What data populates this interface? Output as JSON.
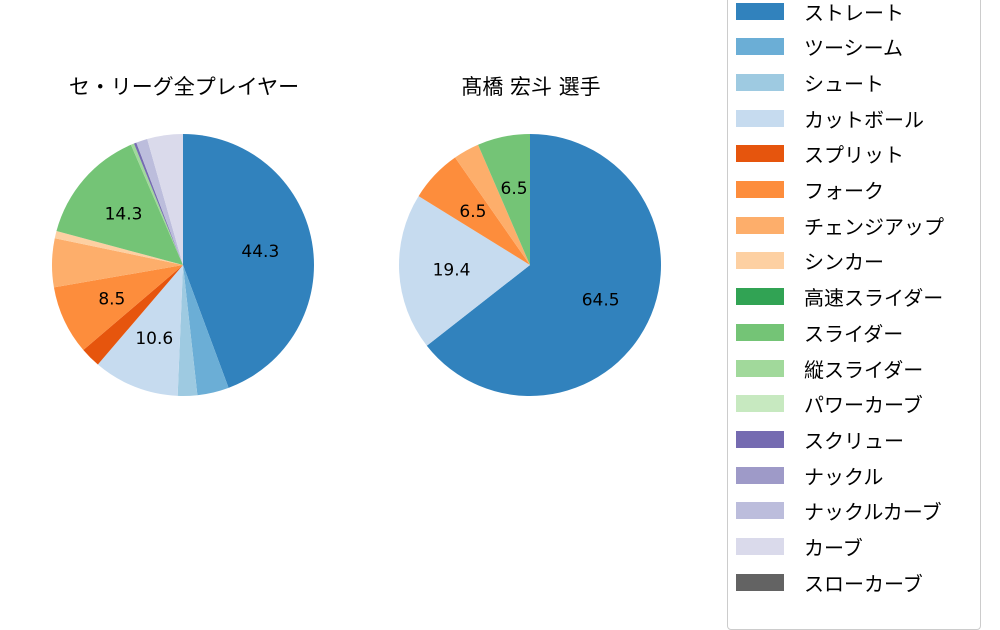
{
  "chart_data": [
    {
      "type": "pie",
      "title": "セ・リーグ全プレイヤー",
      "categories": [
        "ストレート",
        "ツーシーム",
        "シュート",
        "カットボール",
        "スプリット",
        "フォーク",
        "チェンジアップ",
        "シンカー",
        "高速スライダー",
        "スライダー",
        "縦スライダー",
        "パワーカーブ",
        "スクリュー",
        "ナックル",
        "ナックルカーブ",
        "カーブ",
        "スローカーブ"
      ],
      "values": [
        44.3,
        3.9,
        2.4,
        10.6,
        2.5,
        8.5,
        6.0,
        0.9,
        0.0,
        14.3,
        0.4,
        0.0,
        0.3,
        0.0,
        1.4,
        4.4,
        0.0
      ],
      "labels_shown": [
        "44.3",
        "10.6",
        "8.5",
        "14.3"
      ],
      "start_angle": "12 o'clock, clockwise"
    },
    {
      "type": "pie",
      "title": "髙橋 宏斗  選手",
      "categories": [
        "ストレート",
        "カットボール",
        "フォーク",
        "チェンジアップ",
        "スライダー"
      ],
      "values": [
        64.5,
        19.4,
        6.5,
        3.2,
        6.5
      ],
      "labels_shown": [
        "64.5",
        "19.4",
        "6.5",
        "6.5"
      ],
      "start_angle": "12 o'clock, clockwise"
    }
  ],
  "titles": {
    "left": "セ・リーグ全プレイヤー",
    "right": "髙橋 宏斗  選手"
  },
  "legend": [
    {
      "label": "ストレート",
      "color": "#3182bd"
    },
    {
      "label": "ツーシーム",
      "color": "#6baed6"
    },
    {
      "label": "シュート",
      "color": "#9ecae1"
    },
    {
      "label": "カットボール",
      "color": "#c6dbef"
    },
    {
      "label": "スプリット",
      "color": "#e6550d"
    },
    {
      "label": "フォーク",
      "color": "#fd8d3c"
    },
    {
      "label": "チェンジアップ",
      "color": "#fdae6b"
    },
    {
      "label": "シンカー",
      "color": "#fdd0a2"
    },
    {
      "label": "高速スライダー",
      "color": "#31a354"
    },
    {
      "label": "スライダー",
      "color": "#74c476"
    },
    {
      "label": "縦スライダー",
      "color": "#a1d99b"
    },
    {
      "label": "パワーカーブ",
      "color": "#c7e9c0"
    },
    {
      "label": "スクリュー",
      "color": "#756bb1"
    },
    {
      "label": "ナックル",
      "color": "#9e9ac8"
    },
    {
      "label": "ナックルカーブ",
      "color": "#bcbddc"
    },
    {
      "label": "カーブ",
      "color": "#dadaeb"
    },
    {
      "label": "スローカーブ",
      "color": "#636363"
    }
  ]
}
